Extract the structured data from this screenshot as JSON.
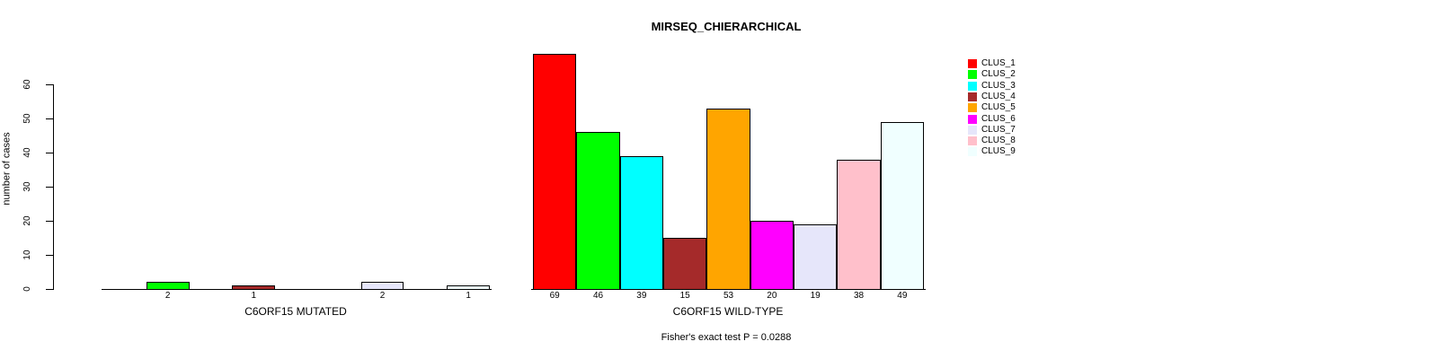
{
  "chart_data": {
    "type": "bar",
    "title": "MIRSEQ_CHIERARCHICAL",
    "ylabel": "number of cases",
    "ylim": [
      0,
      60
    ],
    "yticks": [
      0,
      10,
      20,
      30,
      40,
      50,
      60
    ],
    "grid": false,
    "legend_position": "right",
    "categories": [
      "CLUS_1",
      "CLUS_2",
      "CLUS_3",
      "CLUS_4",
      "CLUS_5",
      "CLUS_6",
      "CLUS_7",
      "CLUS_8",
      "CLUS_9"
    ],
    "colors": [
      "#ff0000",
      "#00ff00",
      "#00ffff",
      "#a52a2a",
      "#ffa500",
      "#ff00ff",
      "#e6e6fa",
      "#ffc0cb",
      "#f0ffff"
    ],
    "series": [
      {
        "name": "C6ORF15 MUTATED",
        "values": [
          0,
          2,
          0,
          1,
          0,
          0,
          2,
          0,
          1
        ]
      },
      {
        "name": "C6ORF15 WILD-TYPE",
        "values": [
          69,
          46,
          39,
          15,
          53,
          20,
          19,
          38,
          49
        ]
      }
    ],
    "bar_labels": {
      "C6ORF15 MUTATED": [
        "",
        "2",
        "",
        "1",
        "",
        "",
        "2",
        "",
        "1"
      ],
      "C6ORF15 WILD-TYPE": [
        "69",
        "46",
        "39",
        "15",
        "53",
        "20",
        "19",
        "38",
        "49"
      ]
    },
    "footnote": "Fisher's exact test P = 0.0288"
  }
}
